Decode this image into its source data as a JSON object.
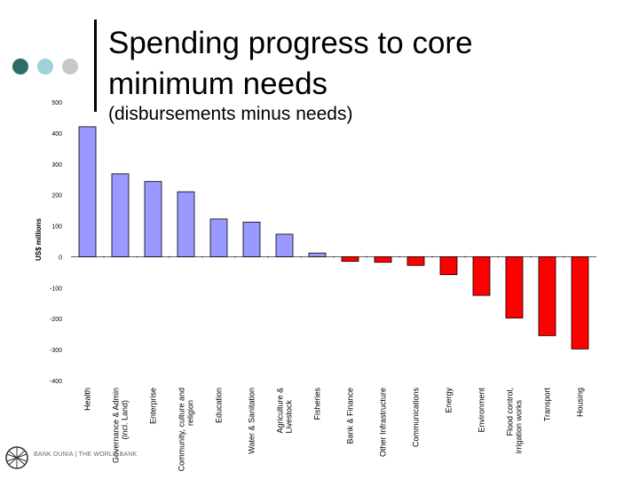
{
  "title": "Spending progress to core minimum needs",
  "subtitle": "(disbursements minus needs)",
  "decor_colors": [
    "#2f6b68",
    "#9ed3d6",
    "#c8c8c8"
  ],
  "logo": {
    "text": "BANK DUNIA | THE WORLD BANK"
  },
  "chart_data": {
    "type": "bar",
    "ylabel": "US$ millions",
    "ylim": [
      -400,
      500
    ],
    "yticks": [
      "500",
      "400",
      "300",
      "200",
      "100",
      "0",
      "-100",
      "-200",
      "-300",
      "-400"
    ],
    "categories": [
      "Health",
      "Governance & Admin (incl. Land)",
      "Enterprise",
      "Community, culture and religion",
      "Education",
      "Water & Sanitation",
      "Agriculture & Livestock",
      "Fisheries",
      "Bank & Finance",
      "Other Infrastructure",
      "Communications",
      "Energy",
      "Environment",
      "Flood control, irrigation works",
      "Transport",
      "Housing"
    ],
    "values": [
      420,
      268,
      243,
      210,
      122,
      112,
      73,
      12,
      -15,
      -18,
      -28,
      -58,
      -125,
      -198,
      -255,
      -298
    ],
    "colors": {
      "positive": "#9999ff",
      "negative": "#ff0000"
    }
  }
}
